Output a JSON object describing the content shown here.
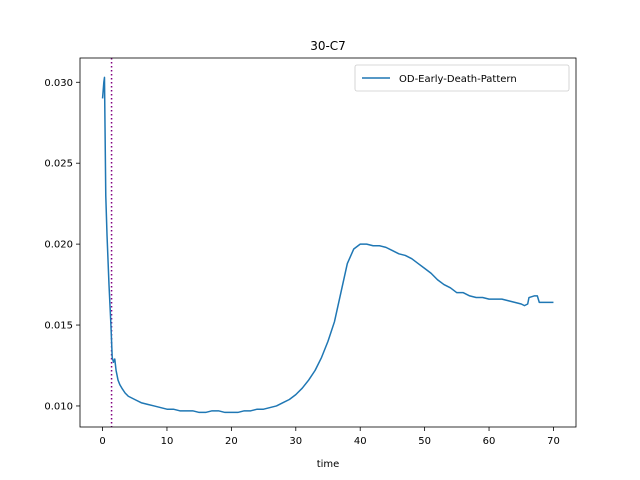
{
  "chart_data": {
    "type": "line",
    "title": "30-C7",
    "xlabel": "time",
    "ylabel": "",
    "xlim": [
      -3.5,
      73.5
    ],
    "ylim": [
      0.0087,
      0.0315
    ],
    "xticks": [
      0,
      10,
      20,
      30,
      40,
      50,
      60,
      70
    ],
    "xtick_labels": [
      "0",
      "10",
      "20",
      "30",
      "40",
      "50",
      "60",
      "70"
    ],
    "yticks": [
      0.01,
      0.015,
      0.02,
      0.025,
      0.03
    ],
    "ytick_labels": [
      "0.010",
      "0.015",
      "0.020",
      "0.025",
      "0.030"
    ],
    "grid": false,
    "legend": {
      "position": "top-right",
      "entries": [
        "OD-Early-Death-Pattern"
      ]
    },
    "vline": {
      "x": 1.4,
      "color": "#800080",
      "style": "dotted"
    },
    "series": [
      {
        "name": "OD-Early-Death-Pattern",
        "color": "#1f77b4",
        "x": [
          0,
          0.2,
          0.3,
          0.5,
          0.7,
          1.0,
          1.3,
          1.5,
          1.7,
          1.9,
          2.1,
          2.4,
          2.7,
          3.0,
          3.5,
          4,
          5,
          6,
          7,
          8,
          9,
          10,
          11,
          12,
          13,
          14,
          15,
          16,
          17,
          18,
          19,
          20,
          21,
          22,
          23,
          24,
          25,
          26,
          27,
          28,
          29,
          30,
          31,
          32,
          33,
          34,
          35,
          36,
          37,
          38,
          39,
          40,
          41,
          42,
          43,
          44,
          45,
          46,
          47,
          48,
          49,
          50,
          51,
          52,
          53,
          54,
          55,
          56,
          57,
          58,
          59,
          60,
          61,
          62,
          63,
          64,
          65,
          65.5,
          66,
          66.2,
          67,
          67.5,
          67.8,
          68,
          69,
          70
        ],
        "values": [
          0.029,
          0.03,
          0.0303,
          0.023,
          0.0205,
          0.0175,
          0.015,
          0.013,
          0.0127,
          0.0129,
          0.0122,
          0.0116,
          0.0113,
          0.0111,
          0.0108,
          0.0106,
          0.0104,
          0.0102,
          0.0101,
          0.01,
          0.0099,
          0.0098,
          0.0098,
          0.0097,
          0.0097,
          0.0097,
          0.0096,
          0.0096,
          0.0097,
          0.0097,
          0.0096,
          0.0096,
          0.0096,
          0.0097,
          0.0097,
          0.0098,
          0.0098,
          0.0099,
          0.01,
          0.0102,
          0.0104,
          0.0107,
          0.0111,
          0.0116,
          0.0122,
          0.013,
          0.014,
          0.0152,
          0.017,
          0.0188,
          0.0197,
          0.02,
          0.02,
          0.0199,
          0.0199,
          0.0198,
          0.0196,
          0.0194,
          0.0193,
          0.0191,
          0.0188,
          0.0185,
          0.0182,
          0.0178,
          0.0175,
          0.0173,
          0.017,
          0.017,
          0.0168,
          0.0167,
          0.0167,
          0.0166,
          0.0166,
          0.0166,
          0.0165,
          0.0164,
          0.0163,
          0.0162,
          0.0163,
          0.0167,
          0.0168,
          0.0168,
          0.0164,
          0.0164,
          0.0164,
          0.0164
        ]
      }
    ]
  }
}
